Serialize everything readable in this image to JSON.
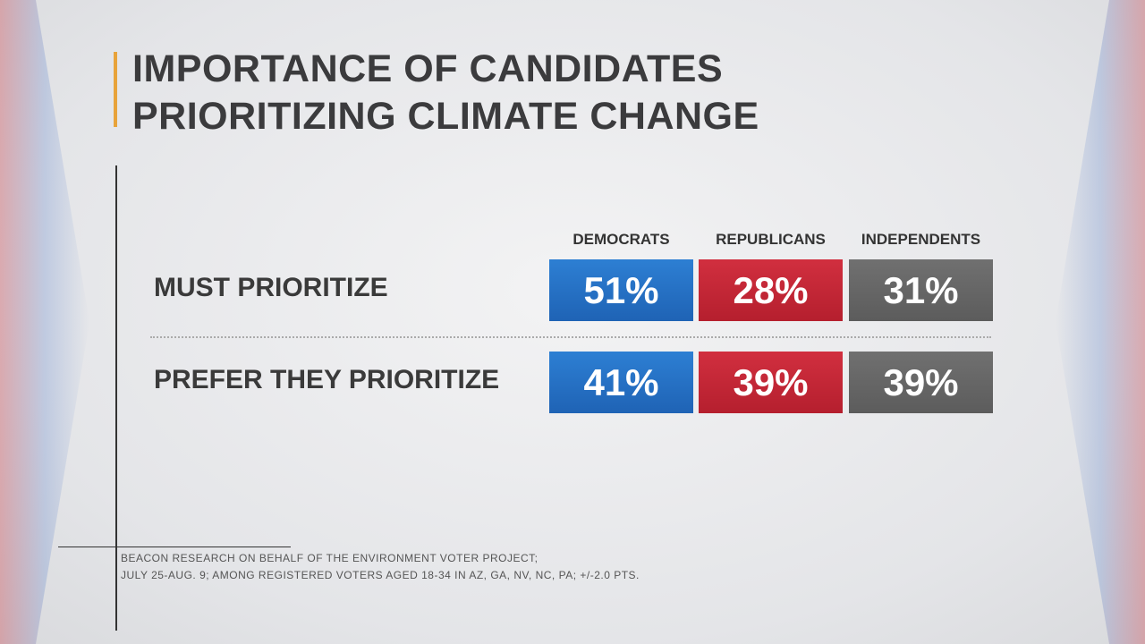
{
  "title": [
    "IMPORTANCE OF CANDIDATES",
    "PRIORITIZING CLIMATE CHANGE"
  ],
  "table": {
    "columns": [
      "DEMOCRATS",
      "REPUBLICANS",
      "INDEPENDENTS"
    ],
    "rows": [
      {
        "label": "MUST PRIORITIZE",
        "cells": [
          "51%",
          "28%",
          "31%"
        ]
      },
      {
        "label": "PREFER THEY PRIORITIZE",
        "cells": [
          "41%",
          "39%",
          "39%"
        ]
      }
    ]
  },
  "source": [
    "BEACON RESEARCH ON BEHALF OF THE ENVIRONMENT VOTER PROJECT;",
    "JULY 25-AUG. 9; AMONG REGISTERED VOTERS AGED 18-34 IN AZ, GA, NV, NC, PA; +/-2.0 PTS."
  ]
}
